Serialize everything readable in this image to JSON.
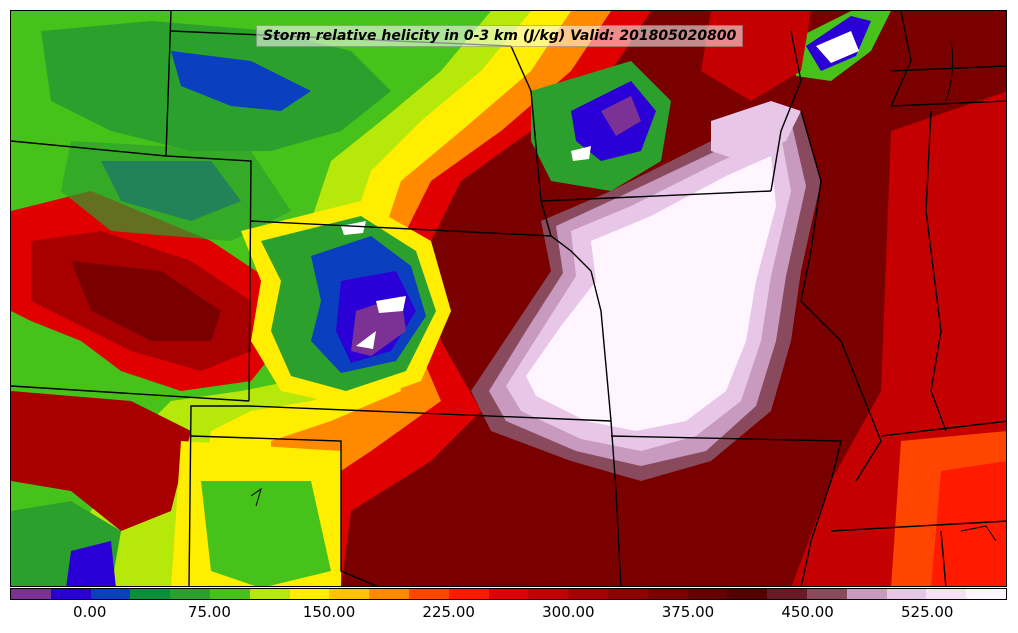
{
  "title": "Storm relative helicity in 0-3 km (J/kg) Valid: 201805020800",
  "colorbar": {
    "colors": [
      "#7b3294",
      "#2b00d6",
      "#0a3fc0",
      "#0b8f3a",
      "#2ca02c",
      "#46c21a",
      "#b6e80a",
      "#ffee00",
      "#ffc300",
      "#ff8a00",
      "#ff4500",
      "#ff1a00",
      "#e10000",
      "#c40000",
      "#a80000",
      "#8f0000",
      "#7a0000",
      "#660000",
      "#540000",
      "#6a1a26",
      "#8a4a5e",
      "#c89ac0",
      "#e8c6e8",
      "#f6e0f6",
      "#fff5ff"
    ],
    "tick_labels": [
      "0.00",
      "75.00",
      "150.00",
      "225.00",
      "300.00",
      "375.00",
      "450.00",
      "525.00"
    ]
  },
  "map": {
    "regions": [
      {
        "name": "background-dark-red",
        "color": "#7a0000"
      },
      {
        "name": "green-north-plains",
        "color": "#46c21a"
      },
      {
        "name": "blue-north",
        "color": "#2b00d6"
      },
      {
        "name": "yellow-band",
        "color": "#ffee00"
      },
      {
        "name": "orange-band",
        "color": "#ff8a00"
      },
      {
        "name": "red-band",
        "color": "#e10000"
      },
      {
        "name": "green-kansas-ring",
        "color": "#2ca02c"
      },
      {
        "name": "blue-kansas-core",
        "color": "#0a3fc0"
      },
      {
        "name": "purple-kansas",
        "color": "#7b3294"
      },
      {
        "name": "white-missouri-blob",
        "color": "#fff5ff"
      },
      {
        "name": "pink-missouri-edge",
        "color": "#e8c6e8"
      },
      {
        "name": "green-new-mexico",
        "color": "#46c21a"
      },
      {
        "name": "green-southwest",
        "color": "#2ca02c"
      }
    ]
  }
}
